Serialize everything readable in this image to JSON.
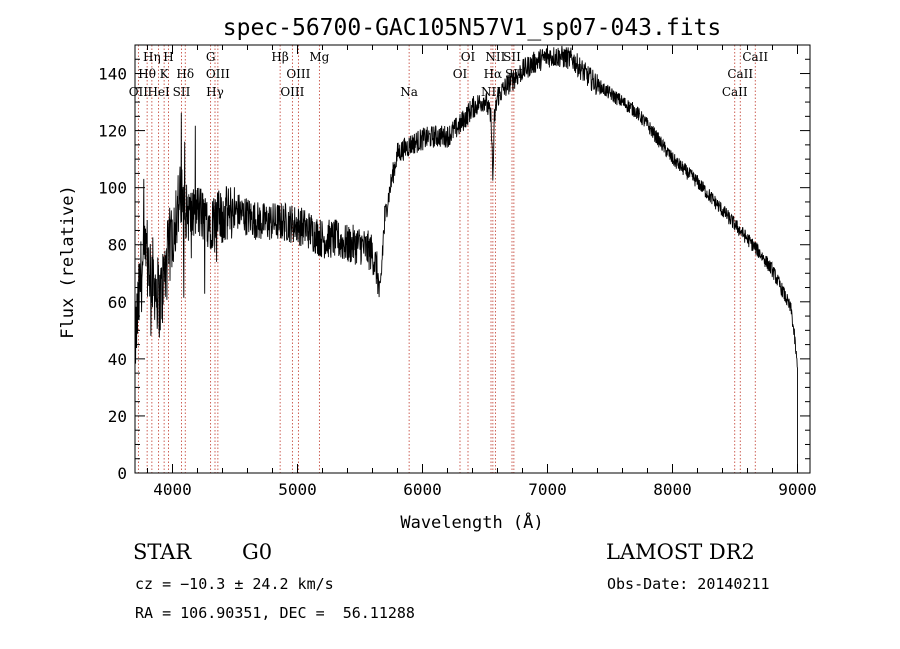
{
  "chart_data": {
    "type": "line",
    "title": "spec-56700-GAC105N57V1_sp07-043.fits",
    "xlabel": "Wavelength (Å)",
    "ylabel": "Flux (relative)",
    "xlim": [
      3700,
      9100
    ],
    "ylim": [
      0,
      150
    ],
    "xticks": [
      4000,
      5000,
      6000,
      7000,
      8000,
      9000
    ],
    "yticks": [
      0,
      20,
      40,
      60,
      80,
      100,
      120,
      140
    ],
    "line_color": "#000000",
    "marker_color": "#c0392b",
    "continuum": [
      [
        3700,
        45
      ],
      [
        3750,
        70
      ],
      [
        3800,
        75
      ],
      [
        3850,
        68
      ],
      [
        3900,
        60
      ],
      [
        3950,
        72
      ],
      [
        4000,
        85
      ],
      [
        4050,
        95
      ],
      [
        4100,
        92
      ],
      [
        4150,
        90
      ],
      [
        4200,
        92
      ],
      [
        4300,
        88
      ],
      [
        4400,
        90
      ],
      [
        4500,
        92
      ],
      [
        4600,
        90
      ],
      [
        4700,
        88
      ],
      [
        4800,
        88
      ],
      [
        4900,
        88
      ],
      [
        5000,
        87
      ],
      [
        5100,
        85
      ],
      [
        5200,
        82
      ],
      [
        5300,
        82
      ],
      [
        5400,
        80
      ],
      [
        5500,
        80
      ],
      [
        5600,
        77
      ],
      [
        5640,
        70
      ],
      [
        5660,
        60
      ],
      [
        5680,
        78
      ],
      [
        5700,
        90
      ],
      [
        5750,
        102
      ],
      [
        5800,
        112
      ],
      [
        5900,
        115
      ],
      [
        6000,
        117
      ],
      [
        6100,
        118
      ],
      [
        6200,
        118
      ],
      [
        6300,
        122
      ],
      [
        6400,
        128
      ],
      [
        6500,
        131
      ],
      [
        6550,
        124
      ],
      [
        6563,
        102
      ],
      [
        6575,
        124
      ],
      [
        6600,
        132
      ],
      [
        6700,
        137
      ],
      [
        6800,
        141
      ],
      [
        6900,
        144
      ],
      [
        7000,
        146
      ],
      [
        7100,
        146
      ],
      [
        7200,
        145
      ],
      [
        7300,
        140
      ],
      [
        7400,
        136
      ],
      [
        7500,
        133
      ],
      [
        7600,
        130
      ],
      [
        7700,
        127
      ],
      [
        7800,
        122
      ],
      [
        7900,
        116
      ],
      [
        8000,
        110
      ],
      [
        8100,
        106
      ],
      [
        8200,
        102
      ],
      [
        8300,
        97
      ],
      [
        8400,
        92
      ],
      [
        8500,
        87
      ],
      [
        8600,
        82
      ],
      [
        8700,
        77
      ],
      [
        8800,
        71
      ],
      [
        8900,
        62
      ],
      [
        8950,
        57
      ],
      [
        8980,
        46
      ],
      [
        9000,
        36
      ]
    ],
    "noise_segments": [
      {
        "from": 3700,
        "to": 4100,
        "amplitude": 14
      },
      {
        "from": 4100,
        "to": 4500,
        "amplitude": 10
      },
      {
        "from": 4500,
        "to": 5700,
        "amplitude": 7
      },
      {
        "from": 5700,
        "to": 6700,
        "amplitude": 4
      },
      {
        "from": 6700,
        "to": 7400,
        "amplitude": 4
      },
      {
        "from": 7400,
        "to": 9000,
        "amplitude": 2.5
      }
    ],
    "line_markers": [
      {
        "label": "Hη",
        "x": 3835,
        "row": 0
      },
      {
        "label": "H",
        "x": 3968,
        "row": 0
      },
      {
        "label": "G",
        "x": 4305,
        "row": 0
      },
      {
        "label": "Hβ",
        "x": 4861,
        "row": 0
      },
      {
        "label": "Mg",
        "x": 5175,
        "row": 0
      },
      {
        "label": "OI",
        "x": 6364,
        "row": 0
      },
      {
        "label": "NII",
        "x": 6583,
        "row": 0
      },
      {
        "label": "SII",
        "x": 6716,
        "row": 0
      },
      {
        "label": "CaII",
        "x": 8662,
        "row": 0
      },
      {
        "label": "Hθ",
        "x": 3797,
        "row": 1
      },
      {
        "label": "K",
        "x": 3933,
        "row": 1
      },
      {
        "label": "Hδ",
        "x": 4102,
        "row": 1
      },
      {
        "label": "OIII",
        "x": 4363,
        "row": 1
      },
      {
        "label": "OIII",
        "x": 5007,
        "row": 1
      },
      {
        "label": "OI",
        "x": 6300,
        "row": 1
      },
      {
        "label": "Hα",
        "x": 6563,
        "row": 1
      },
      {
        "label": "SII",
        "x": 6731,
        "row": 1
      },
      {
        "label": "CaII",
        "x": 8542,
        "row": 1
      },
      {
        "label": "OII",
        "x": 3727,
        "row": 2
      },
      {
        "label": "HeI",
        "x": 3889,
        "row": 2
      },
      {
        "label": "SII",
        "x": 4072,
        "row": 2
      },
      {
        "label": "Hγ",
        "x": 4340,
        "row": 2
      },
      {
        "label": "OIII",
        "x": 4959,
        "row": 2
      },
      {
        "label": "Na",
        "x": 5893,
        "row": 2
      },
      {
        "label": "NII",
        "x": 6548,
        "row": 2
      },
      {
        "label": "CaII",
        "x": 8498,
        "row": 2
      }
    ]
  },
  "info": {
    "class": "STAR",
    "subclass": "G0",
    "survey": "LAMOST DR2",
    "redshift": "cz = −10.3 ± 24.2 km/s",
    "obs_date": "Obs-Date: 20140211",
    "coords": "RA = 106.90351, DEC =  56.11288"
  }
}
